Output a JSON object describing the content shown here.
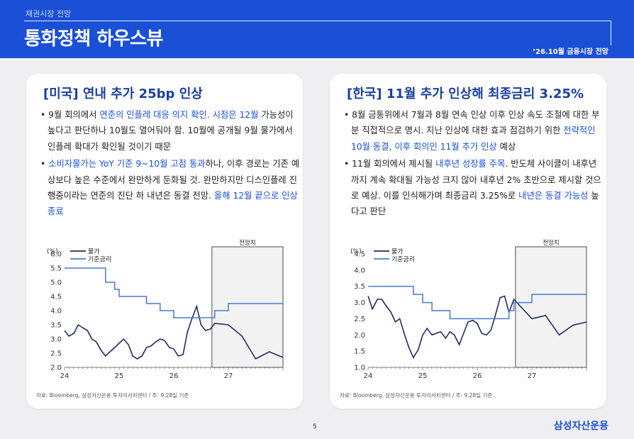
{
  "header": {
    "kicker": "채권시장 전망",
    "title": "통화정책 하우스뷰",
    "date": "’26.10월 금융시장 전망"
  },
  "left": {
    "title": "[미국] 연내 추가 25bp 인상",
    "bullets": [
      [
        {
          "t": "9월 회의에서 "
        },
        {
          "t": "연준의 인플레 대응 의지 확인. 시점은 12월",
          "h": true
        },
        {
          "t": " 가능성이 높다고 판단하나 10월도 열어둬야 함. 10월에 공개될 9월 물가에서 인플레 확대가 확인될 것이기 때문"
        }
      ],
      [
        {
          "t": "소비자물가는 YoY 기준 9~10월 고점 통과",
          "h": true
        },
        {
          "t": "하나, 이후 경로는 기존 예상보다 높은 수준에서 완만하게 둔화될 것. 완만하지만 디스인플레 진행중이라는 연준의 진단 하 내년은 동결 전망. "
        },
        {
          "t": "올해 12월 끝으로 인상 종료",
          "h": true
        }
      ]
    ],
    "source": "자료: Bloomberg, 삼성자산운용 투자리서치센터 / 주: 9.28일 기준"
  },
  "right": {
    "title": "[한국] 11월 추가 인상해 최종금리 3.25%",
    "bullets": [
      [
        {
          "t": "8월 금통위에서 7월과 8월 연속 인상 이후 인상 속도 조절에 대한 부분 직접적으로 명시. 지난 인상에 대한 효과 점검하기 위한 "
        },
        {
          "t": "전략적인 10월 동결, 이후 회의인 11월 추가 인상",
          "h": true
        },
        {
          "t": " 예상"
        }
      ],
      [
        {
          "t": "11월 회의에서 제시될 "
        },
        {
          "t": "내후년 성장률 주목",
          "h": true
        },
        {
          "t": ". 반도체 사이클이 내후년까지 계속 확대될 가능성 크지 않아 내후년 2% 초반으로 제시할 것으로 예상. 이를 인식해가며 최종금리 3.25%로 "
        },
        {
          "t": "내년은 동결 가능성",
          "h": true
        },
        {
          "t": " 높다고 판단"
        }
      ]
    ],
    "source": "자료: Bloomberg, 삼성자산운용 투자리서치센터 / 주: 9.28일 기준"
  },
  "chart_data": [
    {
      "type": "line",
      "unit": "(%)",
      "legend": [
        "물가",
        "기준금리"
      ],
      "forecast_label": "전망치",
      "forecast_start": 26.7,
      "x_ticks": [
        24,
        25,
        26,
        27
      ],
      "xlim": [
        24,
        28
      ],
      "ylim": [
        2.0,
        6.0
      ],
      "y_ticks": [
        "2.0",
        "2.5",
        "3.0",
        "3.5",
        "4.0",
        "4.5",
        "5.0",
        "5.5",
        "6.0"
      ],
      "series": [
        {
          "name": "물가",
          "color": "#1f2d5c",
          "points": [
            [
              24.0,
              3.3
            ],
            [
              24.08,
              3.1
            ],
            [
              24.17,
              3.2
            ],
            [
              24.25,
              3.5
            ],
            [
              24.33,
              3.4
            ],
            [
              24.42,
              3.3
            ],
            [
              24.5,
              3.0
            ],
            [
              24.58,
              2.9
            ],
            [
              24.67,
              2.6
            ],
            [
              24.75,
              2.4
            ],
            [
              24.83,
              2.55
            ],
            [
              24.92,
              2.7
            ],
            [
              25.0,
              2.85
            ],
            [
              25.08,
              3.0
            ],
            [
              25.17,
              2.8
            ],
            [
              25.25,
              2.4
            ],
            [
              25.33,
              2.3
            ],
            [
              25.42,
              2.4
            ],
            [
              25.5,
              2.7
            ],
            [
              25.58,
              2.75
            ],
            [
              25.67,
              2.9
            ],
            [
              25.75,
              3.0
            ],
            [
              25.83,
              2.95
            ],
            [
              25.92,
              2.7
            ],
            [
              26.0,
              2.65
            ],
            [
              26.08,
              2.4
            ],
            [
              26.17,
              2.45
            ],
            [
              26.25,
              3.25
            ],
            [
              26.33,
              3.7
            ],
            [
              26.42,
              4.15
            ],
            [
              26.5,
              3.5
            ],
            [
              26.58,
              3.3
            ],
            [
              26.67,
              3.35
            ],
            [
              26.75,
              3.55
            ],
            [
              27.0,
              3.5
            ],
            [
              27.25,
              3.1
            ],
            [
              27.5,
              2.3
            ],
            [
              27.75,
              2.55
            ],
            [
              28.0,
              2.35
            ]
          ]
        },
        {
          "name": "기준금리",
          "color": "#4a77d4",
          "points": [
            [
              24.0,
              5.5
            ],
            [
              24.75,
              5.5
            ],
            [
              24.75,
              5.0
            ],
            [
              24.92,
              5.0
            ],
            [
              24.92,
              4.75
            ],
            [
              25.0,
              4.75
            ],
            [
              25.0,
              4.5
            ],
            [
              25.5,
              4.5
            ],
            [
              25.5,
              4.25
            ],
            [
              25.75,
              4.25
            ],
            [
              25.75,
              4.0
            ],
            [
              26.0,
              4.0
            ],
            [
              26.0,
              3.75
            ],
            [
              26.75,
              3.75
            ],
            [
              26.75,
              4.0
            ],
            [
              27.0,
              4.0
            ],
            [
              27.0,
              4.25
            ],
            [
              28.0,
              4.25
            ]
          ]
        }
      ]
    },
    {
      "type": "line",
      "unit": "(%)",
      "legend": [
        "물가",
        "기준금리"
      ],
      "forecast_label": "전망치",
      "forecast_start": 26.7,
      "x_ticks": [
        24,
        25,
        26,
        27
      ],
      "xlim": [
        24,
        28
      ],
      "ylim": [
        1.0,
        4.5
      ],
      "y_ticks": [
        "1.0",
        "1.5",
        "2.0",
        "2.5",
        "3.0",
        "3.5",
        "4.0",
        "4.5"
      ],
      "series": [
        {
          "name": "물가",
          "color": "#1f2d5c",
          "points": [
            [
              24.0,
              3.2
            ],
            [
              24.08,
              2.8
            ],
            [
              24.17,
              3.1
            ],
            [
              24.25,
              3.1
            ],
            [
              24.33,
              2.9
            ],
            [
              24.42,
              2.7
            ],
            [
              24.5,
              2.4
            ],
            [
              24.58,
              2.5
            ],
            [
              24.67,
              2.0
            ],
            [
              24.75,
              1.6
            ],
            [
              24.83,
              1.3
            ],
            [
              24.92,
              1.55
            ],
            [
              25.0,
              2.0
            ],
            [
              25.08,
              2.2
            ],
            [
              25.17,
              2.0
            ],
            [
              25.25,
              2.05
            ],
            [
              25.33,
              2.1
            ],
            [
              25.42,
              1.9
            ],
            [
              25.5,
              2.1
            ],
            [
              25.58,
              2.0
            ],
            [
              25.67,
              1.7
            ],
            [
              25.75,
              2.05
            ],
            [
              25.83,
              2.4
            ],
            [
              25.92,
              2.45
            ],
            [
              26.0,
              2.35
            ],
            [
              26.08,
              2.05
            ],
            [
              26.17,
              2.0
            ],
            [
              26.25,
              2.15
            ],
            [
              26.33,
              2.6
            ],
            [
              26.42,
              3.15
            ],
            [
              26.5,
              3.2
            ],
            [
              26.58,
              2.7
            ],
            [
              26.67,
              3.1
            ],
            [
              27.0,
              2.5
            ],
            [
              27.25,
              2.6
            ],
            [
              27.5,
              2.0
            ],
            [
              27.75,
              2.3
            ],
            [
              28.0,
              2.4
            ]
          ]
        },
        {
          "name": "기준금리",
          "color": "#4a77d4",
          "points": [
            [
              24.0,
              3.5
            ],
            [
              24.83,
              3.5
            ],
            [
              24.83,
              3.25
            ],
            [
              25.0,
              3.25
            ],
            [
              25.0,
              3.0
            ],
            [
              25.17,
              3.0
            ],
            [
              25.17,
              2.75
            ],
            [
              25.5,
              2.75
            ],
            [
              25.5,
              2.5
            ],
            [
              26.58,
              2.5
            ],
            [
              26.58,
              2.75
            ],
            [
              26.67,
              2.75
            ],
            [
              26.67,
              3.0
            ],
            [
              27.0,
              3.0
            ],
            [
              27.0,
              3.25
            ],
            [
              28.0,
              3.25
            ]
          ]
        }
      ]
    }
  ]
}
